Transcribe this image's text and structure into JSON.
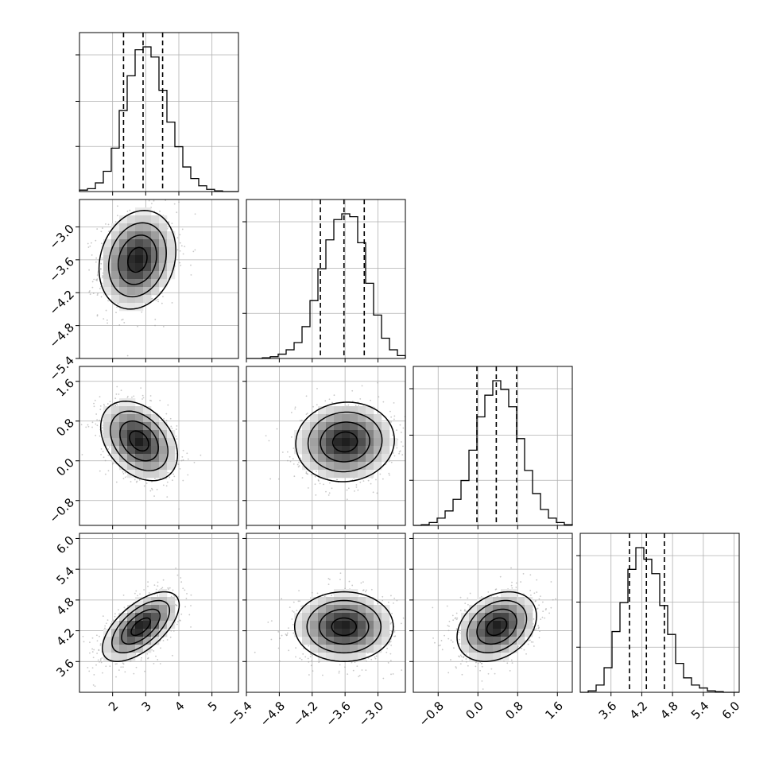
{
  "chart_data": {
    "type": "corner",
    "grid": true,
    "quantile_lines": [
      "16%",
      "50%",
      "84%"
    ],
    "params": [
      {
        "range": [
          1.0,
          5.8
        ],
        "ticks": [
          2,
          3,
          4,
          5
        ],
        "tick_labels": [
          "2",
          "3",
          "4",
          "5"
        ],
        "quantiles": [
          2.33,
          2.92,
          3.51
        ],
        "hist": [
          0.01,
          0.02,
          0.06,
          0.14,
          0.3,
          0.56,
          0.8,
          0.98,
          1.0,
          0.93,
          0.7,
          0.48,
          0.31,
          0.17,
          0.09,
          0.04,
          0.015,
          0.005,
          0,
          0
        ]
      },
      {
        "range": [
          -5.4,
          -2.5
        ],
        "ticks": [
          -5.4,
          -4.8,
          -4.2,
          -3.6,
          -3.0
        ],
        "tick_labels": [
          "−5.4",
          "−4.8",
          "−4.2",
          "−3.6",
          "−3.0"
        ],
        "quantiles": [
          -4.05,
          -3.62,
          -3.25
        ],
        "hist": [
          0,
          0,
          0.005,
          0.012,
          0.03,
          0.06,
          0.11,
          0.22,
          0.4,
          0.62,
          0.82,
          0.96,
          1.0,
          0.98,
          0.8,
          0.52,
          0.3,
          0.14,
          0.06,
          0.02
        ]
      },
      {
        "range": [
          -1.3,
          1.9
        ],
        "ticks": [
          -0.8,
          0.0,
          0.8,
          1.6
        ],
        "tick_labels": [
          "−0.8",
          "0.0",
          "0.8",
          "1.6"
        ],
        "quantiles": [
          -0.02,
          0.37,
          0.78
        ],
        "hist": [
          0,
          0.005,
          0.02,
          0.05,
          0.1,
          0.18,
          0.31,
          0.52,
          0.75,
          0.9,
          1.0,
          0.94,
          0.82,
          0.6,
          0.38,
          0.22,
          0.11,
          0.05,
          0.02,
          0.005
        ]
      },
      {
        "range": [
          3.0,
          6.1
        ],
        "ticks": [
          3.6,
          4.2,
          4.8,
          5.4,
          6.0
        ],
        "tick_labels": [
          "3.6",
          "4.2",
          "4.8",
          "5.4",
          "6.0"
        ],
        "quantiles": [
          3.96,
          4.29,
          4.64
        ],
        "hist": [
          0,
          0.01,
          0.05,
          0.17,
          0.42,
          0.62,
          0.85,
          1.0,
          0.92,
          0.82,
          0.6,
          0.4,
          0.2,
          0.1,
          0.05,
          0.03,
          0.01,
          0.005,
          0,
          0
        ]
      }
    ],
    "pairs": [
      {
        "row": 1,
        "col": 0,
        "center": [
          2.75,
          -3.6
        ],
        "sigma": [
          0.58,
          0.45
        ],
        "corr": 0.18
      },
      {
        "row": 2,
        "col": 0,
        "center": [
          2.8,
          0.4
        ],
        "sigma": [
          0.58,
          0.4
        ],
        "corr": -0.35
      },
      {
        "row": 2,
        "col": 1,
        "center": [
          -3.6,
          0.38
        ],
        "sigma": [
          0.45,
          0.4
        ],
        "corr": 0.05
      },
      {
        "row": 3,
        "col": 0,
        "center": [
          2.85,
          4.28
        ],
        "sigma": [
          0.58,
          0.34
        ],
        "corr": 0.62
      },
      {
        "row": 3,
        "col": 1,
        "center": [
          -3.62,
          4.28
        ],
        "sigma": [
          0.45,
          0.34
        ],
        "corr": 0.0
      },
      {
        "row": 3,
        "col": 2,
        "center": [
          0.38,
          4.28
        ],
        "sigma": [
          0.4,
          0.34
        ],
        "corr": 0.3
      }
    ]
  }
}
